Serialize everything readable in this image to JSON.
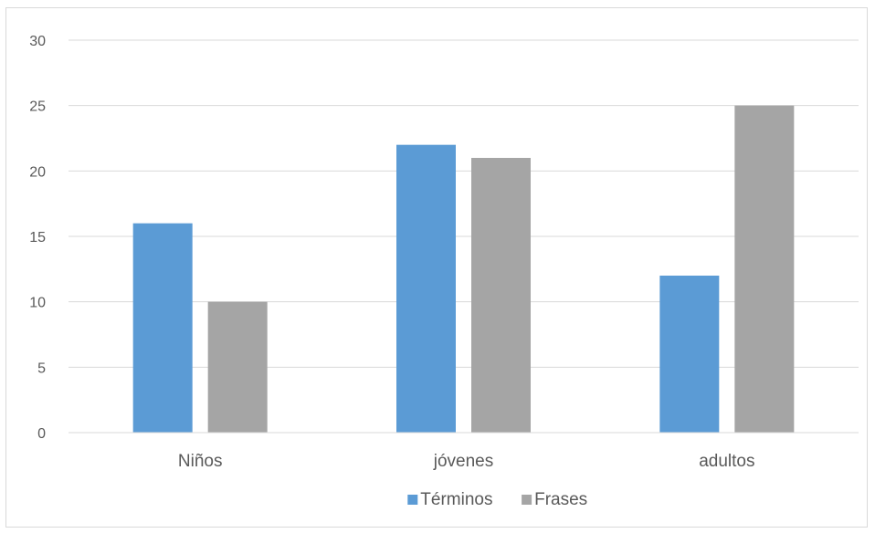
{
  "chart_data": {
    "type": "bar",
    "categories": [
      "Niños",
      "jóvenes",
      "adultos"
    ],
    "series": [
      {
        "name": "Términos",
        "values": [
          16,
          22,
          12
        ],
        "color": "#5b9bd5"
      },
      {
        "name": "Frases",
        "values": [
          10,
          21,
          25
        ],
        "color": "#a5a5a5"
      }
    ],
    "ylim": [
      0,
      30
    ],
    "yticks": [
      0,
      5,
      10,
      15,
      20,
      25,
      30
    ],
    "grid": true,
    "gridColor": "#d9d9d9",
    "legend_position": "bottom"
  }
}
